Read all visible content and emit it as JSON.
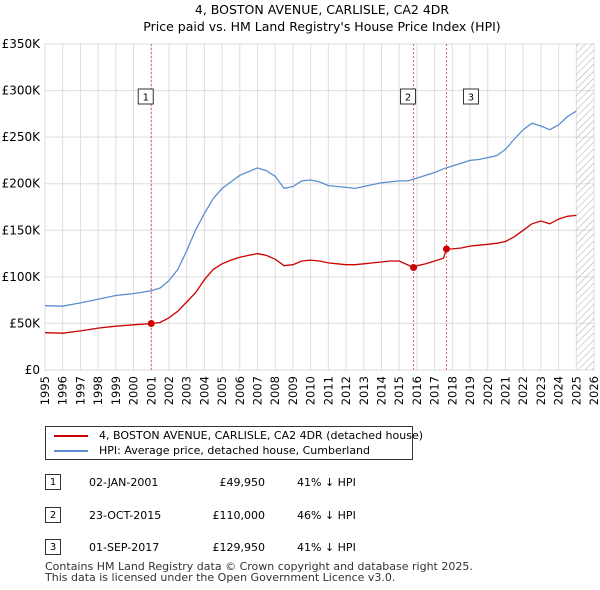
{
  "chart_data": {
    "type": "line",
    "title": "4, BOSTON AVENUE, CARLISLE, CA2 4DR",
    "subtitle": "Price paid vs. HM Land Registry's House Price Index (HPI)",
    "xlim": [
      1995,
      2026
    ],
    "ylim": [
      0,
      350000
    ],
    "x_ticks": [
      "1995",
      "1996",
      "1997",
      "1998",
      "1999",
      "2000",
      "2001",
      "2002",
      "2003",
      "2004",
      "2005",
      "2006",
      "2007",
      "2008",
      "2009",
      "2010",
      "2011",
      "2012",
      "2013",
      "2014",
      "2015",
      "2016",
      "2017",
      "2018",
      "2019",
      "2020",
      "2021",
      "2022",
      "2023",
      "2024",
      "2025",
      "2026"
    ],
    "y_ticks": [
      {
        "value": 0,
        "label": "£0"
      },
      {
        "value": 50000,
        "label": "£50K"
      },
      {
        "value": 100000,
        "label": "£100K"
      },
      {
        "value": 150000,
        "label": "£150K"
      },
      {
        "value": 200000,
        "label": "£200K"
      },
      {
        "value": 250000,
        "label": "£250K"
      },
      {
        "value": 300000,
        "label": "£300K"
      },
      {
        "value": 350000,
        "label": "£350K"
      }
    ],
    "future_from": 2025.0,
    "series": [
      {
        "name": "4, BOSTON AVENUE, CARLISLE, CA2 4DR (detached house)",
        "color": "#cc0000",
        "x": [
          1995,
          1996,
          1997,
          1998,
          1999,
          2000,
          2001.0,
          2001.5,
          2002,
          2002.5,
          2003,
          2003.5,
          2004,
          2004.5,
          2005,
          2005.5,
          2006,
          2006.5,
          2007,
          2007.5,
          2008,
          2008.5,
          2009,
          2009.5,
          2010,
          2010.5,
          2011,
          2011.5,
          2012,
          2012.5,
          2013,
          2013.5,
          2014,
          2014.5,
          2015,
          2015.8,
          2016,
          2016.5,
          2017,
          2017.5,
          2017.67,
          2018,
          2018.5,
          2019,
          2019.5,
          2020,
          2020.5,
          2021,
          2021.5,
          2022,
          2022.5,
          2023,
          2023.5,
          2024,
          2024.5,
          2025
        ],
        "y": [
          40000,
          39500,
          42000,
          45000,
          47000,
          48500,
          49950,
          51000,
          56000,
          63000,
          73000,
          83000,
          97000,
          108000,
          114000,
          118000,
          121000,
          123000,
          125000,
          123000,
          119000,
          112000,
          113000,
          117000,
          118000,
          117000,
          115000,
          114000,
          113000,
          113000,
          114000,
          115000,
          116000,
          117000,
          117000,
          110000,
          112000,
          114000,
          117000,
          120000,
          129950,
          130000,
          131000,
          133000,
          134000,
          135000,
          136000,
          138000,
          143000,
          150000,
          157000,
          160000,
          157000,
          162000,
          165000,
          166000
        ]
      },
      {
        "name": "HPI: Average price, detached house, Cumberland",
        "color": "#5b8fd0",
        "x": [
          1995,
          1996,
          1997,
          1998,
          1999,
          2000,
          2001,
          2001.5,
          2002,
          2002.5,
          2003,
          2003.5,
          2004,
          2004.5,
          2005,
          2005.5,
          2006,
          2006.5,
          2007,
          2007.5,
          2008,
          2008.5,
          2009,
          2009.5,
          2010,
          2010.5,
          2011,
          2011.5,
          2012,
          2012.5,
          2013,
          2013.5,
          2014,
          2014.5,
          2015,
          2015.5,
          2016,
          2016.5,
          2017,
          2017.5,
          2018,
          2018.5,
          2019,
          2019.5,
          2020,
          2020.5,
          2021,
          2021.5,
          2022,
          2022.5,
          2023,
          2023.5,
          2024,
          2024.5,
          2025
        ],
        "y": [
          69000,
          68500,
          72000,
          76000,
          80000,
          82000,
          85000,
          88000,
          96000,
          108000,
          128000,
          150000,
          168000,
          184000,
          195000,
          202000,
          209000,
          213000,
          217000,
          214000,
          208000,
          195000,
          197000,
          203000,
          204000,
          202000,
          198000,
          197000,
          196000,
          195000,
          197000,
          199000,
          201000,
          202000,
          203000,
          203000,
          206000,
          209000,
          212000,
          216000,
          219000,
          222000,
          225000,
          226000,
          228000,
          230000,
          237000,
          248000,
          258000,
          265000,
          262000,
          258000,
          263000,
          272000,
          278000
        ]
      }
    ],
    "sales": [
      {
        "marker": "1",
        "x": 2001.0,
        "y": 49950
      },
      {
        "marker": "2",
        "x": 2015.81,
        "y": 110000
      },
      {
        "marker": "3",
        "x": 2017.67,
        "y": 129950
      }
    ]
  },
  "legend": {
    "property_label": "4, BOSTON AVENUE, CARLISLE, CA2 4DR (detached house)",
    "hpi_label": "HPI: Average price, detached house, Cumberland",
    "property_color": "#cc0000",
    "hpi_color": "#5b8fd0"
  },
  "sales_table": [
    {
      "num": "1",
      "date": "02-JAN-2001",
      "price": "£49,950",
      "hpi": "41% ↓ HPI"
    },
    {
      "num": "2",
      "date": "23-OCT-2015",
      "price": "£110,000",
      "hpi": "46% ↓ HPI"
    },
    {
      "num": "3",
      "date": "01-SEP-2017",
      "price": "£129,950",
      "hpi": "41% ↓ HPI"
    }
  ],
  "footer": {
    "line1": "Contains HM Land Registry data © Crown copyright and database right 2025.",
    "line2": "This data is licensed under the Open Government Licence v3.0."
  }
}
